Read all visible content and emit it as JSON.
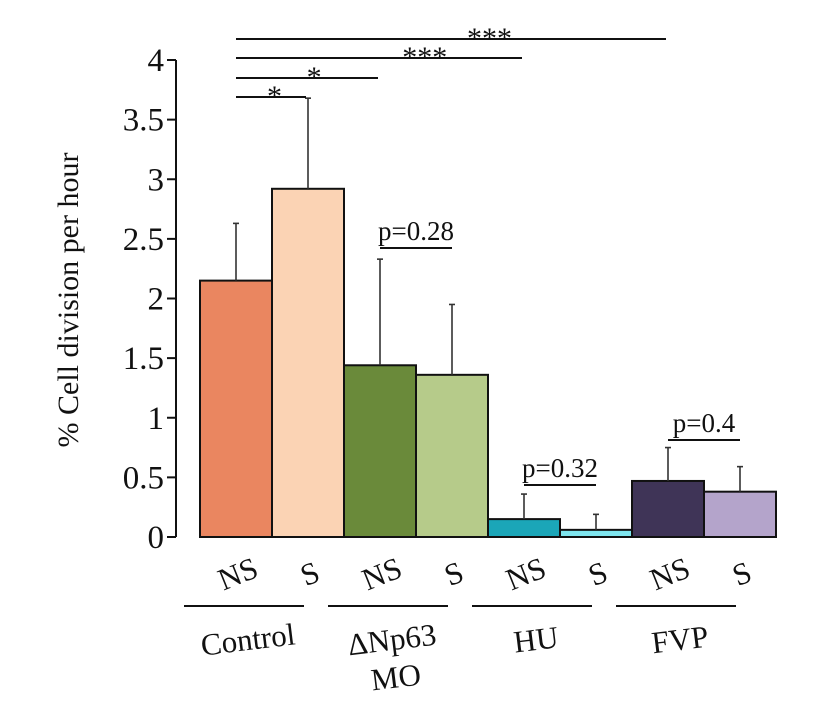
{
  "chart_data": {
    "type": "bar",
    "ylabel": "% Cell division per hour",
    "ylim": [
      0,
      4
    ],
    "yticks": [
      "0",
      "0.5",
      "1",
      "1.5",
      "2",
      "2.5",
      "3",
      "3.5",
      "4"
    ],
    "yticks_values": [
      0,
      0.5,
      1,
      1.5,
      2,
      2.5,
      3,
      3.5,
      4
    ],
    "bars": [
      {
        "label": "NS",
        "group": "Control",
        "value": 2.15,
        "error": 0.48,
        "color": "#ea8660"
      },
      {
        "label": "S",
        "group": "Control",
        "value": 2.92,
        "error": 0.76,
        "color": "#fbd3b4"
      },
      {
        "label": "NS",
        "group": "ΔNp63 MO",
        "value": 1.44,
        "error": 0.89,
        "color": "#6a8a3a"
      },
      {
        "label": "S",
        "group": "ΔNp63 MO",
        "value": 1.36,
        "error": 0.59,
        "color": "#b6cb8a"
      },
      {
        "label": "NS",
        "group": "HU",
        "value": 0.15,
        "error": 0.21,
        "color": "#1ba6b8"
      },
      {
        "label": "S",
        "group": "HU",
        "value": 0.06,
        "error": 0.13,
        "color": "#7ee5ee"
      },
      {
        "label": "NS",
        "group": "FVP",
        "value": 0.47,
        "error": 0.28,
        "color": "#3f3457"
      },
      {
        "label": "S",
        "group": "FVP",
        "value": 0.38,
        "error": 0.21,
        "color": "#b4a4cb"
      }
    ],
    "groups": [
      {
        "line1": "Control",
        "line2": ""
      },
      {
        "line1": "ΔNp63",
        "line2": "MO"
      },
      {
        "line1": "HU",
        "line2": ""
      },
      {
        "line1": "FVP",
        "line2": ""
      }
    ],
    "significance": [
      {
        "from_bar": 0,
        "to_bar": 1,
        "label": "*"
      },
      {
        "from_bar": 0,
        "to_bar": 2,
        "label": "*"
      },
      {
        "from_bar": 0,
        "to_bar": 4,
        "label": "***"
      },
      {
        "from_bar": 0,
        "to_bar": 6,
        "label": "***"
      },
      {
        "from_bar": 2,
        "to_bar": 3,
        "label": "p=0.28"
      },
      {
        "from_bar": 4,
        "to_bar": 5,
        "label": "p=0.32"
      },
      {
        "from_bar": 6,
        "to_bar": 7,
        "label": "p=0.4"
      }
    ]
  }
}
